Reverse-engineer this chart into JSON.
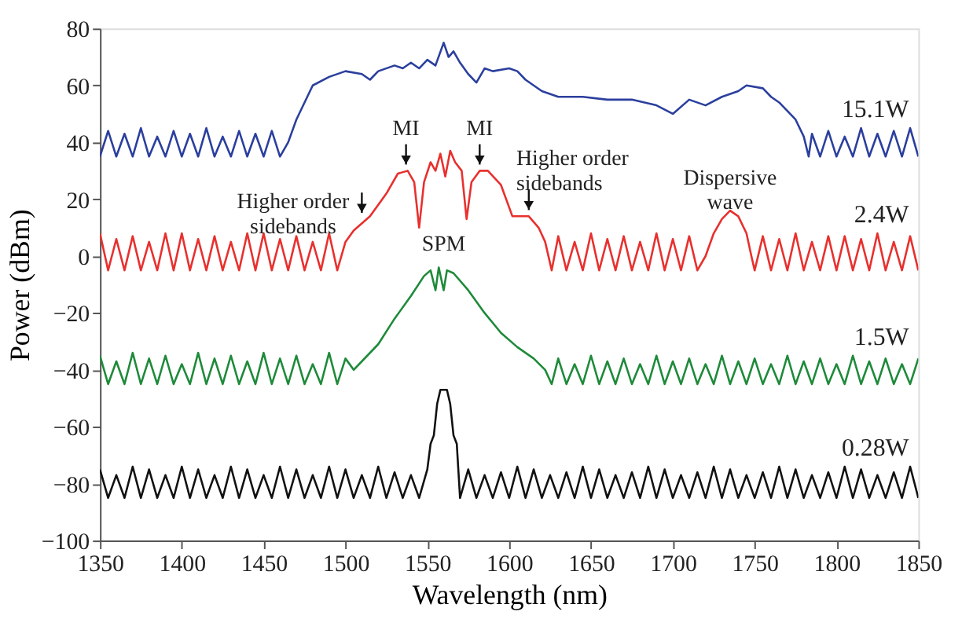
{
  "chart_data": {
    "type": "line",
    "xlabel": "Wavelength (nm)",
    "ylabel": "Power (dBm)",
    "xlim": [
      1350,
      1850
    ],
    "xticks": [
      1350,
      1400,
      1450,
      1500,
      1550,
      1600,
      1650,
      1700,
      1750,
      1800,
      1850
    ],
    "ylim": [
      -100,
      80
    ],
    "yticks": [
      -100,
      -80,
      -60,
      -40,
      -20,
      0,
      20,
      40,
      60,
      80
    ],
    "grid": false,
    "legend": false,
    "line_style": "solid",
    "marker": "none",
    "series": [
      {
        "name": "15.1W",
        "color": "#2b3f9e",
        "x": [
          1350,
          1355,
          1360,
          1365,
          1370,
          1375,
          1380,
          1385,
          1390,
          1395,
          1400,
          1405,
          1410,
          1415,
          1420,
          1425,
          1430,
          1435,
          1440,
          1445,
          1450,
          1455,
          1460,
          1465,
          1470,
          1480,
          1490,
          1500,
          1510,
          1515,
          1520,
          1530,
          1535,
          1540,
          1545,
          1550,
          1555,
          1560,
          1563,
          1566,
          1570,
          1575,
          1580,
          1585,
          1590,
          1600,
          1605,
          1610,
          1620,
          1630,
          1645,
          1660,
          1675,
          1690,
          1700,
          1710,
          1720,
          1730,
          1740,
          1745,
          1755,
          1760,
          1765,
          1775,
          1780,
          1783,
          1785,
          1790,
          1795,
          1800,
          1805,
          1810,
          1815,
          1820,
          1825,
          1830,
          1835,
          1840,
          1845,
          1850
        ],
        "values": [
          35,
          44,
          35,
          43,
          35,
          45,
          35,
          42,
          35,
          44,
          35,
          43,
          35,
          45,
          35,
          42,
          35,
          44,
          35,
          43,
          35,
          44,
          35,
          40,
          48,
          60,
          63,
          65,
          64,
          62,
          65,
          67,
          66,
          68,
          66,
          69,
          67,
          75,
          70,
          72,
          68,
          64,
          61,
          66,
          65,
          66,
          65,
          62,
          58,
          56,
          56,
          55,
          55,
          53,
          50,
          55,
          53,
          56,
          58,
          60,
          59,
          56,
          54,
          48,
          42,
          35,
          43,
          35,
          44,
          35,
          42,
          35,
          45,
          35,
          43,
          35,
          44,
          35,
          45,
          35
        ]
      },
      {
        "name": "2.4W",
        "color": "#e8302e",
        "x": [
          1350,
          1355,
          1360,
          1365,
          1370,
          1375,
          1380,
          1385,
          1390,
          1395,
          1400,
          1405,
          1410,
          1415,
          1420,
          1425,
          1430,
          1435,
          1440,
          1445,
          1450,
          1455,
          1460,
          1465,
          1470,
          1475,
          1480,
          1485,
          1490,
          1495,
          1500,
          1505,
          1515,
          1525,
          1532,
          1538,
          1542,
          1545,
          1548,
          1552,
          1555,
          1558,
          1561,
          1564,
          1567,
          1571,
          1574,
          1577,
          1582,
          1587,
          1595,
          1602,
          1606,
          1612,
          1618,
          1622,
          1626,
          1630,
          1635,
          1640,
          1645,
          1650,
          1655,
          1660,
          1665,
          1670,
          1675,
          1680,
          1685,
          1690,
          1695,
          1700,
          1705,
          1710,
          1715,
          1720,
          1725,
          1730,
          1735,
          1740,
          1745,
          1748,
          1750,
          1755,
          1760,
          1765,
          1770,
          1775,
          1780,
          1785,
          1790,
          1795,
          1800,
          1805,
          1810,
          1815,
          1820,
          1825,
          1830,
          1835,
          1840,
          1845,
          1850
        ],
        "values": [
          8,
          -5,
          6,
          -5,
          7,
          -5,
          5,
          -5,
          8,
          -5,
          8,
          -5,
          6,
          -5,
          7,
          -5,
          5,
          -5,
          8,
          -5,
          8,
          -5,
          6,
          -5,
          7,
          -5,
          5,
          -5,
          8,
          -5,
          5,
          9,
          14,
          22,
          29,
          30,
          26,
          10,
          26,
          33,
          30,
          36,
          28,
          37,
          33,
          30,
          13,
          26,
          30,
          30,
          25,
          14,
          14,
          14,
          10,
          5,
          -5,
          7,
          -5,
          5,
          -5,
          8,
          -5,
          6,
          -5,
          7,
          -5,
          5,
          -5,
          8,
          -5,
          6,
          -5,
          7,
          -5,
          0,
          8,
          13,
          16,
          14,
          8,
          0,
          -5,
          7,
          -5,
          6,
          -5,
          8,
          -5,
          5,
          -5,
          7,
          -5,
          7,
          -5,
          6,
          -5,
          8,
          -5,
          5,
          -5,
          7,
          -5
        ]
      },
      {
        "name": "1.5W",
        "color": "#1e8a3a",
        "x": [
          1350,
          1355,
          1360,
          1365,
          1370,
          1375,
          1380,
          1385,
          1390,
          1395,
          1400,
          1405,
          1410,
          1415,
          1420,
          1425,
          1430,
          1435,
          1440,
          1445,
          1450,
          1455,
          1460,
          1465,
          1470,
          1475,
          1480,
          1485,
          1490,
          1495,
          1500,
          1505,
          1510,
          1520,
          1530,
          1540,
          1548,
          1552,
          1555,
          1557,
          1560,
          1562,
          1566,
          1575,
          1585,
          1595,
          1605,
          1615,
          1622,
          1626,
          1630,
          1635,
          1640,
          1645,
          1650,
          1655,
          1660,
          1665,
          1670,
          1675,
          1680,
          1685,
          1690,
          1695,
          1700,
          1705,
          1710,
          1715,
          1720,
          1725,
          1730,
          1735,
          1740,
          1745,
          1750,
          1755,
          1760,
          1765,
          1770,
          1775,
          1780,
          1785,
          1790,
          1795,
          1800,
          1805,
          1810,
          1815,
          1820,
          1825,
          1830,
          1835,
          1840,
          1845,
          1850
        ],
        "values": [
          -35,
          -45,
          -37,
          -45,
          -34,
          -45,
          -36,
          -45,
          -35,
          -45,
          -38,
          -45,
          -34,
          -45,
          -36,
          -45,
          -35,
          -45,
          -37,
          -45,
          -34,
          -45,
          -36,
          -45,
          -35,
          -45,
          -38,
          -45,
          -34,
          -45,
          -36,
          -40,
          -37,
          -31,
          -22,
          -14,
          -7,
          -5,
          -12,
          -4,
          -12,
          -5,
          -6,
          -12,
          -20,
          -27,
          -32,
          -36,
          -40,
          -45,
          -36,
          -45,
          -38,
          -45,
          -35,
          -45,
          -37,
          -45,
          -36,
          -45,
          -38,
          -45,
          -35,
          -45,
          -37,
          -45,
          -36,
          -45,
          -38,
          -45,
          -35,
          -45,
          -37,
          -45,
          -36,
          -45,
          -38,
          -45,
          -35,
          -45,
          -37,
          -45,
          -36,
          -45,
          -38,
          -45,
          -35,
          -45,
          -37,
          -45,
          -36,
          -45,
          -38,
          -45,
          -36
        ]
      },
      {
        "name": "0.28W",
        "color": "#111111",
        "x": [
          1350,
          1355,
          1360,
          1365,
          1370,
          1375,
          1380,
          1385,
          1390,
          1395,
          1400,
          1405,
          1410,
          1415,
          1420,
          1425,
          1430,
          1435,
          1440,
          1445,
          1450,
          1455,
          1460,
          1465,
          1470,
          1475,
          1480,
          1485,
          1490,
          1495,
          1500,
          1505,
          1510,
          1515,
          1520,
          1525,
          1530,
          1535,
          1540,
          1545,
          1550,
          1552,
          1554,
          1556,
          1558,
          1562,
          1564,
          1566,
          1568,
          1570,
          1575,
          1580,
          1585,
          1590,
          1595,
          1600,
          1605,
          1610,
          1615,
          1620,
          1625,
          1630,
          1635,
          1640,
          1645,
          1650,
          1655,
          1660,
          1665,
          1670,
          1675,
          1680,
          1685,
          1690,
          1695,
          1700,
          1705,
          1710,
          1715,
          1720,
          1725,
          1730,
          1735,
          1740,
          1745,
          1750,
          1755,
          1760,
          1765,
          1770,
          1775,
          1780,
          1785,
          1790,
          1795,
          1800,
          1805,
          1810,
          1815,
          1820,
          1825,
          1830,
          1835,
          1840,
          1845,
          1850
        ],
        "values": [
          -75,
          -85,
          -77,
          -85,
          -74,
          -85,
          -75,
          -85,
          -77,
          -85,
          -74,
          -85,
          -75,
          -85,
          -77,
          -85,
          -74,
          -85,
          -75,
          -85,
          -77,
          -85,
          -74,
          -85,
          -75,
          -85,
          -77,
          -85,
          -74,
          -85,
          -75,
          -85,
          -77,
          -85,
          -74,
          -85,
          -76,
          -85,
          -77,
          -85,
          -75,
          -66,
          -63,
          -52,
          -47,
          -47,
          -52,
          -63,
          -66,
          -85,
          -75,
          -85,
          -77,
          -85,
          -76,
          -85,
          -74,
          -85,
          -75,
          -85,
          -77,
          -85,
          -76,
          -85,
          -74,
          -85,
          -75,
          -85,
          -77,
          -85,
          -76,
          -85,
          -74,
          -85,
          -75,
          -85,
          -77,
          -85,
          -76,
          -85,
          -74,
          -85,
          -75,
          -85,
          -77,
          -85,
          -76,
          -85,
          -74,
          -85,
          -75,
          -85,
          -77,
          -85,
          -76,
          -85,
          -74,
          -85,
          -75,
          -85,
          -77,
          -85,
          -76,
          -85,
          -74,
          -85
        ]
      }
    ],
    "annotations": [
      {
        "text": "Higher order\nsidebands",
        "x": 1510,
        "y": 13
      },
      {
        "text": "MI",
        "x": 1537,
        "y": 30
      },
      {
        "text": "MI",
        "x": 1582,
        "y": 30
      },
      {
        "text": "Higher order\nsidebands",
        "x": 1612,
        "y": 14
      },
      {
        "text": "Dispersive\nwave",
        "x": 1735,
        "y": 17
      },
      {
        "text": "SPM",
        "x": 1560,
        "y": -3
      }
    ]
  }
}
